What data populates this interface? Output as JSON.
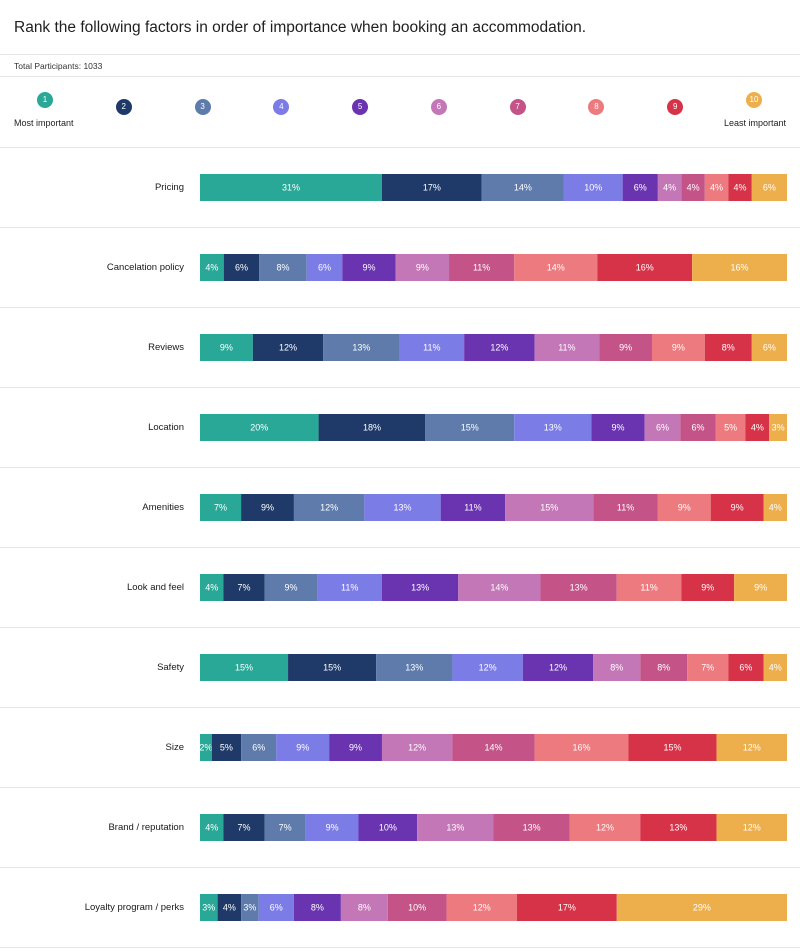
{
  "title": "Rank the following factors in order of importance when booking an accommodation.",
  "participants_label": "Total Participants: 1033",
  "scale": {
    "ranks": [
      "1",
      "2",
      "3",
      "4",
      "5",
      "6",
      "7",
      "8",
      "9",
      "10"
    ],
    "colors": [
      "#29a898",
      "#1f3a68",
      "#5e7bab",
      "#7c7ce6",
      "#6a33b0",
      "#c477b6",
      "#c45488",
      "#ec7a7e",
      "#d63248",
      "#ecaf4c"
    ],
    "most_label": "Most important",
    "least_label": "Least important"
  },
  "chart_data": {
    "type": "bar",
    "stacked": true,
    "orientation": "horizontal",
    "title": "Rank the following factors in order of importance when booking an accommodation.",
    "categories": [
      "Pricing",
      "Cancelation policy",
      "Reviews",
      "Location",
      "Amenities",
      "Look and feel",
      "Safety",
      "Size",
      "Brand / reputation",
      "Loyalty program / perks"
    ],
    "series": [
      {
        "name": "1",
        "values": [
          31,
          4,
          9,
          20,
          7,
          4,
          15,
          2,
          4,
          3
        ]
      },
      {
        "name": "2",
        "values": [
          17,
          6,
          12,
          18,
          9,
          7,
          15,
          5,
          7,
          4
        ]
      },
      {
        "name": "3",
        "values": [
          14,
          8,
          13,
          15,
          12,
          9,
          13,
          6,
          7,
          3
        ]
      },
      {
        "name": "4",
        "values": [
          10,
          6,
          11,
          13,
          13,
          11,
          12,
          9,
          9,
          6
        ]
      },
      {
        "name": "5",
        "values": [
          6,
          9,
          12,
          9,
          11,
          13,
          12,
          9,
          10,
          8
        ]
      },
      {
        "name": "6",
        "values": [
          4,
          9,
          11,
          6,
          15,
          14,
          8,
          12,
          13,
          8
        ]
      },
      {
        "name": "7",
        "values": [
          4,
          11,
          9,
          6,
          11,
          13,
          8,
          14,
          13,
          10
        ]
      },
      {
        "name": "8",
        "values": [
          4,
          14,
          9,
          5,
          9,
          11,
          7,
          16,
          12,
          12
        ]
      },
      {
        "name": "9",
        "values": [
          4,
          16,
          8,
          4,
          9,
          9,
          6,
          15,
          13,
          17
        ]
      },
      {
        "name": "10",
        "values": [
          6,
          16,
          6,
          3,
          4,
          9,
          4,
          12,
          12,
          29
        ]
      }
    ],
    "unit": "%"
  }
}
